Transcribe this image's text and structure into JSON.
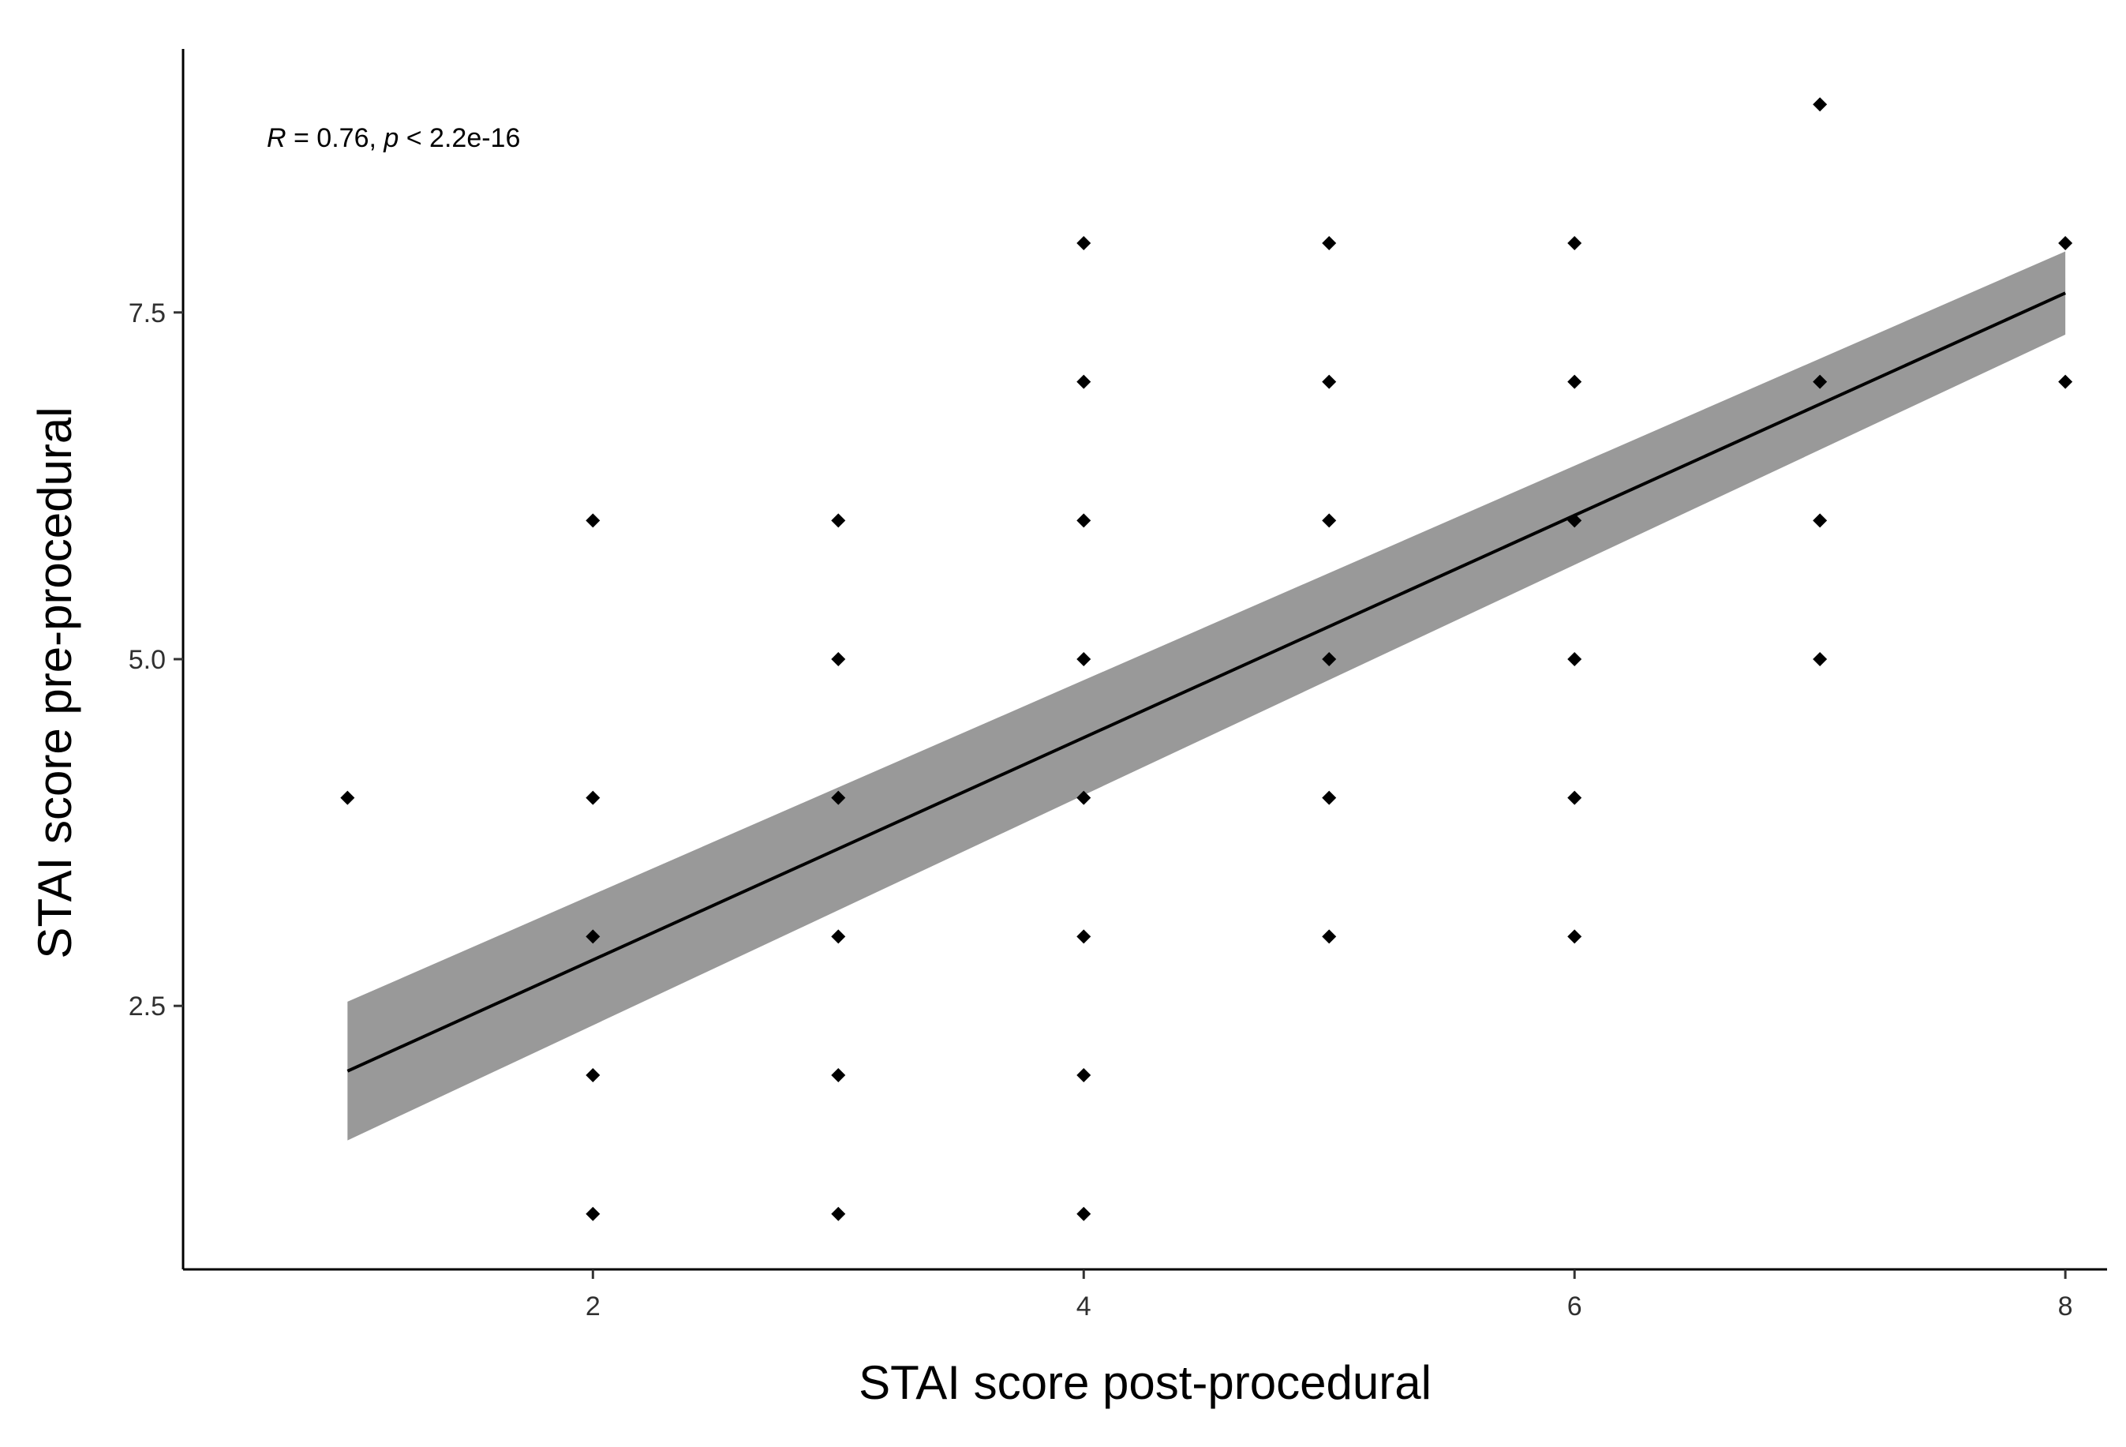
{
  "chart_data": {
    "type": "scatter",
    "title": "",
    "xlabel": "STAI score post-procedural",
    "ylabel": "STAI score pre-procedural",
    "xlim": [
      0.33,
      8.17
    ],
    "ylim": [
      0.6,
      9.4
    ],
    "x_ticks": [
      2,
      4,
      6,
      8
    ],
    "x_tick_labels": [
      "2",
      "4",
      "6",
      "8"
    ],
    "y_ticks": [
      2.5,
      5.0,
      7.5
    ],
    "y_tick_labels": [
      "2.5",
      "5.0",
      "7.5"
    ],
    "grid": false,
    "legend": "none",
    "annotation": {
      "r_symbol": "R",
      "r_text": " = 0.76, ",
      "p_symbol": "p",
      "p_text": " < 2.2e-16"
    },
    "points": [
      {
        "x": 1,
        "y": 4
      },
      {
        "x": 2,
        "y": 1
      },
      {
        "x": 2,
        "y": 2
      },
      {
        "x": 2,
        "y": 3
      },
      {
        "x": 2,
        "y": 4
      },
      {
        "x": 2,
        "y": 6
      },
      {
        "x": 3,
        "y": 1
      },
      {
        "x": 3,
        "y": 2
      },
      {
        "x": 3,
        "y": 3
      },
      {
        "x": 3,
        "y": 4
      },
      {
        "x": 3,
        "y": 5
      },
      {
        "x": 3,
        "y": 6
      },
      {
        "x": 4,
        "y": 1
      },
      {
        "x": 4,
        "y": 2
      },
      {
        "x": 4,
        "y": 3
      },
      {
        "x": 4,
        "y": 4
      },
      {
        "x": 4,
        "y": 5
      },
      {
        "x": 4,
        "y": 6
      },
      {
        "x": 4,
        "y": 7
      },
      {
        "x": 4,
        "y": 8
      },
      {
        "x": 5,
        "y": 3
      },
      {
        "x": 5,
        "y": 4
      },
      {
        "x": 5,
        "y": 5
      },
      {
        "x": 5,
        "y": 6
      },
      {
        "x": 5,
        "y": 7
      },
      {
        "x": 5,
        "y": 8
      },
      {
        "x": 6,
        "y": 3
      },
      {
        "x": 6,
        "y": 4
      },
      {
        "x": 6,
        "y": 5
      },
      {
        "x": 6,
        "y": 6
      },
      {
        "x": 6,
        "y": 7
      },
      {
        "x": 6,
        "y": 8
      },
      {
        "x": 7,
        "y": 5
      },
      {
        "x": 7,
        "y": 6
      },
      {
        "x": 7,
        "y": 7
      },
      {
        "x": 7,
        "y": 9
      },
      {
        "x": 8,
        "y": 7
      },
      {
        "x": 8,
        "y": 8
      }
    ],
    "fit_line": {
      "type": "linear",
      "x_range": [
        1,
        8
      ],
      "y_at_x_start": 2.03,
      "y_at_x_end": 7.64,
      "ci_lower_at_x_start": 1.53,
      "ci_upper_at_x_start": 2.53,
      "ci_lower_at_x_end": 7.34,
      "ci_upper_at_x_end": 7.94,
      "line_color": "#000000",
      "ribbon_color": "#999999"
    },
    "point_color": "#000000"
  }
}
